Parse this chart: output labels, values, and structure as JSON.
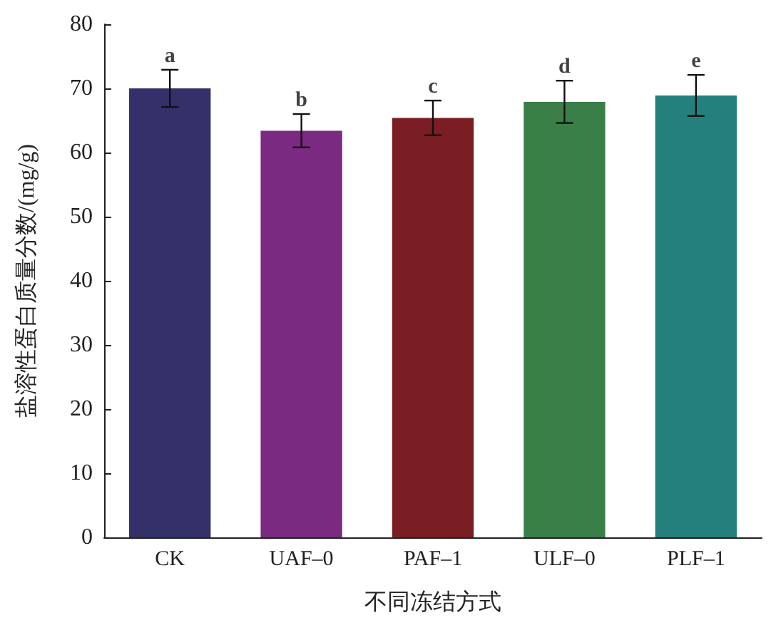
{
  "chart_data": {
    "type": "bar",
    "xlabel": "不同冻结方式",
    "ylabel": "盐溶性蛋白质量分数/(mg/g)",
    "categories": [
      "CK",
      "UAF–0",
      "PAF–1",
      "ULF–0",
      "PLF–1"
    ],
    "values": [
      70.0,
      63.4,
      65.4,
      67.9,
      68.9
    ],
    "errors": [
      2.9,
      2.6,
      2.7,
      3.3,
      3.2
    ],
    "colors": [
      "#33306a",
      "#7a2a80",
      "#7a1e24",
      "#3a7f48",
      "#24807d"
    ],
    "ylim": [
      0,
      80
    ],
    "yticks": [
      0,
      10,
      20,
      30,
      40,
      50,
      60,
      70,
      80
    ],
    "grid": false,
    "annotations": [
      {
        "text": "a",
        "x": "CK",
        "y": 72.9
      },
      {
        "text": "b",
        "x": "UAF–0",
        "y": 66.0
      },
      {
        "text": "c",
        "x": "PAF–1",
        "y": 68.1
      },
      {
        "text": "d",
        "x": "ULF–0",
        "y": 71.2
      },
      {
        "text": "e",
        "x": "PLF–1",
        "y": 72.1
      }
    ]
  }
}
